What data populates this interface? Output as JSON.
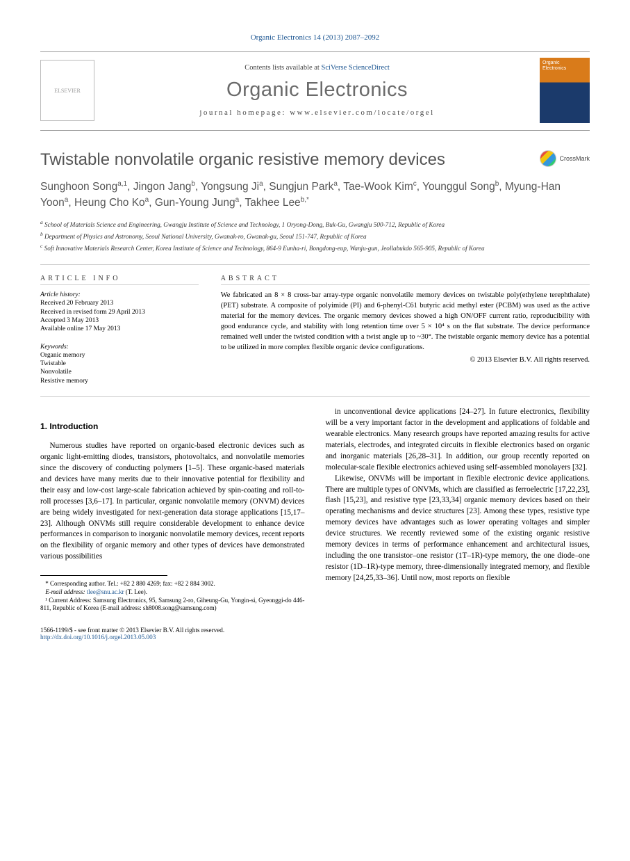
{
  "colors": {
    "link": "#1a5490",
    "heading_gray": "#555555",
    "rule": "#cccccc"
  },
  "header": {
    "citation": "Organic Electronics 14 (2013) 2087–2092"
  },
  "banner": {
    "contents_prefix": "Contents lists available at ",
    "contents_link": "SciVerse ScienceDirect",
    "journal": "Organic Electronics",
    "homepage_label": "journal homepage: ",
    "homepage_url": "www.elsevier.com/locate/orgel",
    "publisher_logo_label": "ELSEVIER",
    "cover_label_1": "Organic",
    "cover_label_2": "Electronics"
  },
  "crossmark": {
    "label": "CrossMark"
  },
  "article": {
    "title": "Twistable nonvolatile organic resistive memory devices",
    "authors_html": [
      {
        "name": "Sunghoon Song",
        "sup": "a,1"
      },
      {
        "name": "Jingon Jang",
        "sup": "b"
      },
      {
        "name": "Yongsung Ji",
        "sup": "a"
      },
      {
        "name": "Sungjun Park",
        "sup": "a"
      },
      {
        "name": "Tae-Wook Kim",
        "sup": "c"
      },
      {
        "name": "Younggul Song",
        "sup": "b"
      },
      {
        "name": "Myung-Han Yoon",
        "sup": "a"
      },
      {
        "name": "Heung Cho Ko",
        "sup": "a"
      },
      {
        "name": "Gun-Young Jung",
        "sup": "a"
      },
      {
        "name": "Takhee Lee",
        "sup": "b,*"
      }
    ],
    "affiliations": {
      "a": "School of Materials Science and Engineering, Gwangju Institute of Science and Technology, 1 Oryong-Dong, Buk-Gu, Gwangju 500-712, Republic of Korea",
      "b": "Department of Physics and Astronomy, Seoul National University, Gwanak-ro, Gwanak-gu, Seoul 151-747, Republic of Korea",
      "c": "Soft Innovative Materials Research Center, Korea Institute of Science and Technology, 864-9 Eunha-ri, Bongdong-eup, Wanju-gun, Jeollabukdo 565-905, Republic of Korea"
    }
  },
  "info": {
    "article_info_head": "ARTICLE INFO",
    "abstract_head": "ABSTRACT",
    "history_label": "Article history:",
    "history": [
      "Received 20 February 2013",
      "Received in revised form 29 April 2013",
      "Accepted 3 May 2013",
      "Available online 17 May 2013"
    ],
    "keywords_label": "Keywords:",
    "keywords": [
      "Organic memory",
      "Twistable",
      "Nonvolatile",
      "Resistive memory"
    ],
    "abstract": "We fabricated an 8 × 8 cross-bar array-type organic nonvolatile memory devices on twistable poly(ethylene terephthalate) (PET) substrate. A composite of polyimide (PI) and 6-phenyl-C61 butyric acid methyl ester (PCBM) was used as the active material for the memory devices. The organic memory devices showed a high ON/OFF current ratio, reproducibility with good endurance cycle, and stability with long retention time over 5 × 10⁴ s on the flat substrate. The device performance remained well under the twisted condition with a twist angle up to ~30°. The twistable organic memory device has a potential to be utilized in more complex flexible organic device configurations.",
    "copyright": "© 2013 Elsevier B.V. All rights reserved."
  },
  "section1": {
    "head": "1. Introduction"
  },
  "body": {
    "p1": "Numerous studies have reported on organic-based electronic devices such as organic light-emitting diodes, transistors, photovoltaics, and nonvolatile memories since the discovery of conducting polymers [1–5]. These organic-based materials and devices have many merits due to their innovative potential for flexibility and their easy and low-cost large-scale fabrication achieved by spin-coating and roll-to-roll processes [3,6–17]. In particular, organic nonvolatile memory (ONVM) devices are being widely investigated for next-generation data storage applications [15,17–23]. Although ONVMs still require considerable development to enhance device performances in comparison to inorganic nonvolatile memory devices, recent reports on the flexibility of organic memory and other types of devices have demonstrated various possibilities",
    "p2": "in unconventional device applications [24–27]. In future electronics, flexibility will be a very important factor in the development and applications of foldable and wearable electronics. Many research groups have reported amazing results for active materials, electrodes, and integrated circuits in flexible electronics based on organic and inorganic materials [26,28–31]. In addition, our group recently reported on molecular-scale flexible electronics achieved using self-assembled monolayers [32].",
    "p3": "Likewise, ONVMs will be important in flexible electronic device applications. There are multiple types of ONVMs, which are classified as ferroelectric [17,22,23], flash [15,23], and resistive type [23,33,34] organic memory devices based on their operating mechanisms and device structures [23]. Among these types, resistive type memory devices have advantages such as lower operating voltages and simpler device structures. We recently reviewed some of the existing organic resistive memory devices in terms of performance enhancement and architectural issues, including the one transistor–one resistor (1T–1R)-type memory, the one diode–one resistor (1D–1R)-type memory, three-dimensionally integrated memory, and flexible memory [24,25,33–36]. Until now, most reports on flexible"
  },
  "footnotes": {
    "corresponding": "* Corresponding author. Tel.: +82 2 880 4269; fax: +82 2 884 3002.",
    "email_label": "E-mail address:",
    "email_value": "tlee@snu.ac.kr",
    "email_person": "(T. Lee).",
    "current_addr": "¹ Current Address: Samsung Electronics, 95, Samsung 2-ro, Giheung-Gu, Yongin-si, Gyeonggi-do 446-811, Republic of Korea (E-mail address: sh8008.song@samsung.com)"
  },
  "footer": {
    "left1": "1566-1199/$ - see front matter © 2013 Elsevier B.V. All rights reserved.",
    "left2_url": "http://dx.doi.org/10.1016/j.orgel.2013.05.003"
  }
}
